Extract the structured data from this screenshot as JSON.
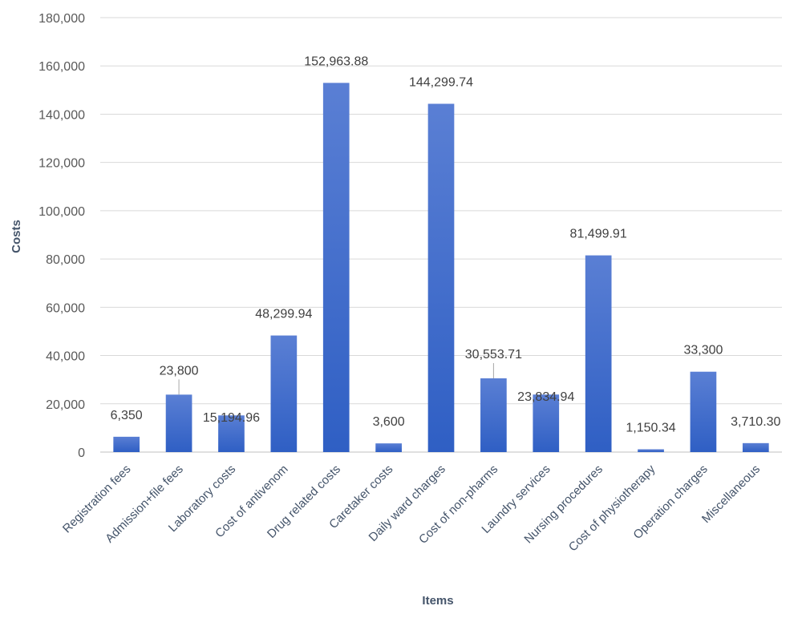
{
  "chart_data": {
    "type": "bar",
    "title": "",
    "xlabel": "Items",
    "ylabel": "Costs",
    "ylim": [
      0,
      180000
    ],
    "yticks": [
      0,
      20000,
      40000,
      60000,
      80000,
      100000,
      120000,
      140000,
      160000,
      180000
    ],
    "ytick_labels": [
      "0",
      "20,000",
      "40,000",
      "60,000",
      "80,000",
      "100,000",
      "120,000",
      "140,000",
      "160,000",
      "180,000"
    ],
    "grid": true,
    "legend": "none",
    "categories": [
      "Registration fees",
      "Admission+file fees",
      "Laboratory costs",
      "Cost of antivenom",
      "Drug related costs",
      "Caretaker costs",
      "Daily ward charges",
      "Cost of non-pharms",
      "Laundry services",
      "Nursing procedures",
      "Cost of physiotherapy",
      "Operation charges",
      "Miscellaneous"
    ],
    "values": [
      6350,
      23800,
      15194.96,
      48299.94,
      152963.88,
      3600,
      144299.74,
      30553.71,
      23834.94,
      81499.91,
      1150.34,
      33300,
      3710.3
    ],
    "data_labels": [
      "6,350",
      "23,800",
      "15,194.96",
      "48,299.94",
      "152,963.88",
      "3,600",
      "144,299.74",
      "30,553.71",
      "23,834.94",
      "81,499.91",
      "1,150.34",
      "33,300",
      "3,710.30"
    ],
    "colors": {
      "bar_top": "#5a7fd4",
      "bar_bottom": "#2f5fc4"
    }
  }
}
